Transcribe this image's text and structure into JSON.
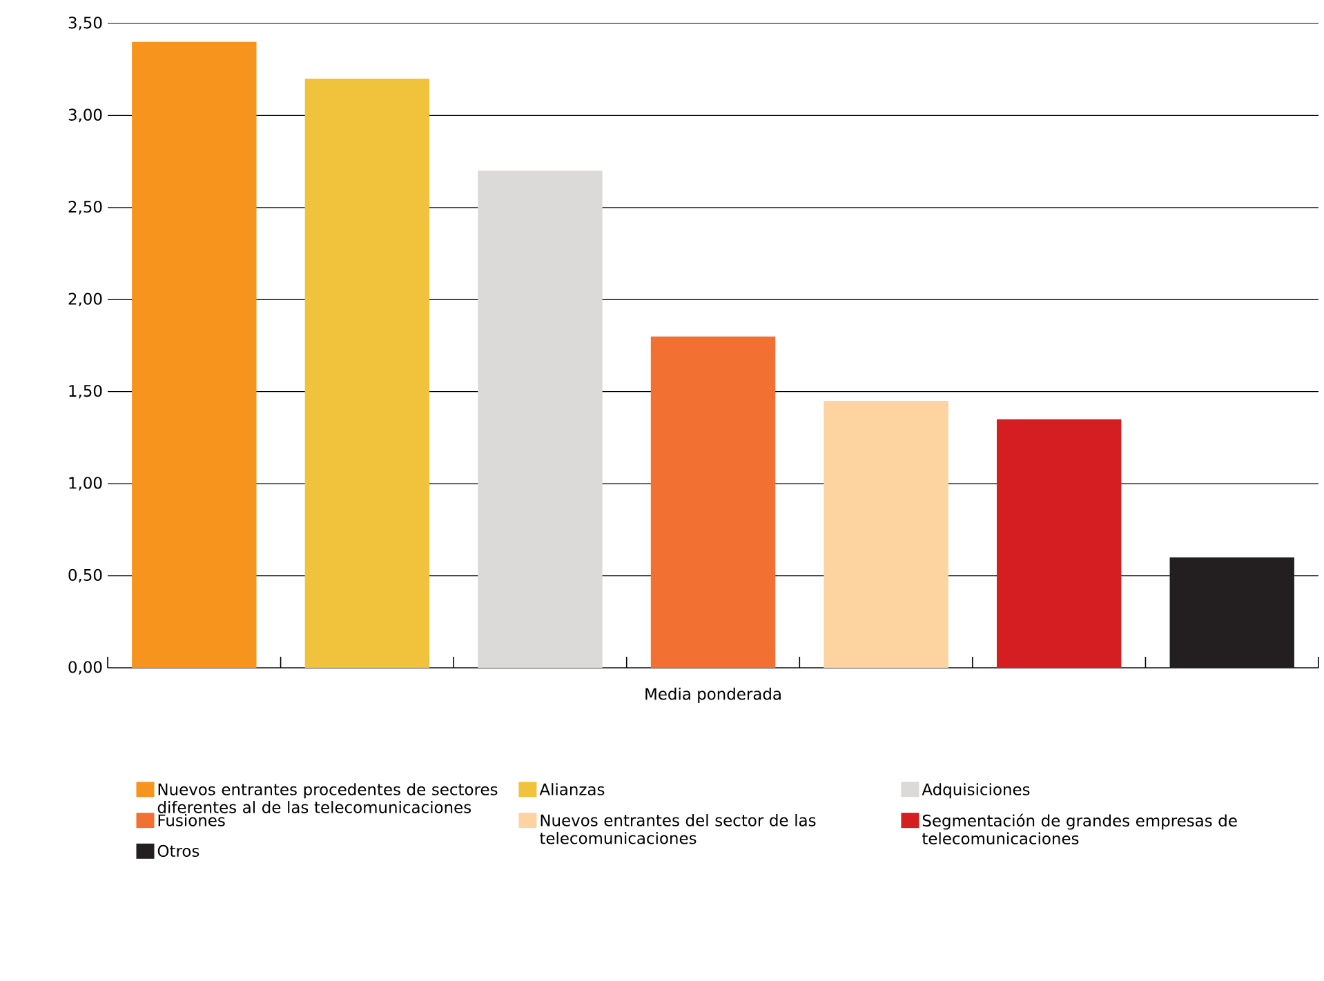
{
  "chart_data": {
    "type": "bar",
    "xlabel": "Media ponderada",
    "categories": [
      null,
      null,
      null,
      null,
      null,
      null,
      null
    ],
    "series": [
      {
        "name": "Nuevos entrantes procedentes de sectores diferentes al de las telecomunicaciones",
        "color": "#f7941d",
        "values": [
          3.4,
          null,
          null,
          null,
          null,
          null,
          null
        ]
      },
      {
        "name": "Alianzas",
        "color": "#f1c33c",
        "values": [
          null,
          3.2,
          null,
          null,
          null,
          null,
          null
        ]
      },
      {
        "name": "Adquisiciones",
        "color": "#dcdad8",
        "values": [
          null,
          null,
          2.7,
          null,
          null,
          null,
          null
        ]
      },
      {
        "name": "Fusiones",
        "color": "#f27132",
        "values": [
          null,
          null,
          null,
          1.8,
          null,
          null,
          null
        ]
      },
      {
        "name": "Nuevos entrantes del sector de las telecomunicaciones",
        "color": "#fdd3a0",
        "values": [
          null,
          null,
          null,
          null,
          1.45,
          null,
          null
        ]
      },
      {
        "name": "Segmentación de grandes empresas de telecomunicaciones",
        "color": "#d51e22",
        "values": [
          null,
          null,
          null,
          null,
          null,
          1.35,
          null
        ]
      },
      {
        "name": "Otros",
        "color": "#231f20",
        "values": [
          null,
          null,
          null,
          null,
          null,
          null,
          0.6
        ]
      }
    ],
    "ylim": [
      0,
      3.5
    ],
    "yticks": [
      {
        "value": 0,
        "label": "0,00"
      },
      {
        "value": 0.5,
        "label": "0,50"
      },
      {
        "value": 1,
        "label": "1,00"
      },
      {
        "value": 1.5,
        "label": "1,50"
      },
      {
        "value": 2,
        "label": "2,00"
      },
      {
        "value": 2.5,
        "label": "2,50"
      },
      {
        "value": 3,
        "label": "3,00"
      },
      {
        "value": 3.5,
        "label": "3,50"
      }
    ],
    "grid": "y",
    "legend": "bottom"
  }
}
